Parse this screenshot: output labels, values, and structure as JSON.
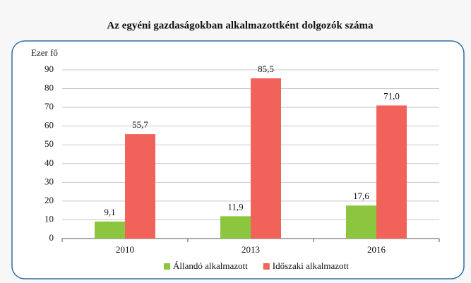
{
  "chart_data": {
    "type": "bar",
    "title": "Az egyéni gazdaságokban alkalmazottként dolgozók száma",
    "y_label": "Ezer fő",
    "categories": [
      "2010",
      "2013",
      "2016"
    ],
    "series": [
      {
        "name": "Állandó alkalmazott",
        "color": "#8cc63e",
        "values": [
          9.1,
          11.9,
          17.6
        ],
        "value_labels": [
          "9,1",
          "11,9",
          "17,6"
        ]
      },
      {
        "name": "Időszaki alkalmazott",
        "color": "#f1635a",
        "values": [
          55.7,
          85.5,
          71.0
        ],
        "value_labels": [
          "55,7",
          "85,5",
          "71,0"
        ]
      }
    ],
    "ylim": [
      0,
      90
    ],
    "yticks": [
      0,
      10,
      20,
      30,
      40,
      50,
      60,
      70,
      80,
      90
    ],
    "grid": true,
    "legend": "bottom"
  }
}
